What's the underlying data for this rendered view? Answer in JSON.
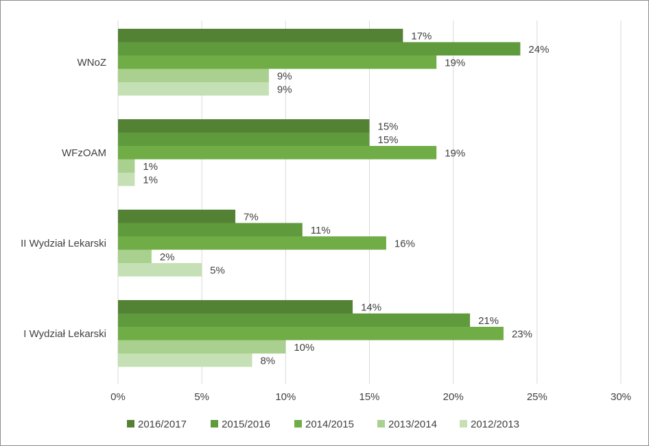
{
  "chart_data": {
    "type": "bar",
    "orientation": "horizontal",
    "title": "",
    "xlabel": "",
    "ylabel": "",
    "categories": [
      "WNoZ",
      "WFzOAM",
      "II Wydział Lekarski",
      "I Wydział Lekarski"
    ],
    "series": [
      {
        "name": "2016/2017",
        "color": "#548235",
        "values": [
          17,
          15,
          7,
          14
        ]
      },
      {
        "name": "2015/2016",
        "color": "#5f9a3c",
        "values": [
          24,
          15,
          11,
          21
        ]
      },
      {
        "name": "2014/2015",
        "color": "#70ad47",
        "values": [
          19,
          19,
          16,
          23
        ]
      },
      {
        "name": "2013/2014",
        "color": "#a9d08e",
        "values": [
          9,
          1,
          2,
          10
        ]
      },
      {
        "name": "2012/2013",
        "color": "#c5e0b4",
        "values": [
          9,
          1,
          5,
          8
        ]
      }
    ],
    "value_suffix": "%",
    "xlim": [
      0,
      30
    ],
    "x_ticks": [
      "0%",
      "5%",
      "10%",
      "15%",
      "20%",
      "25%",
      "30%"
    ],
    "grid": "vertical",
    "legend_position": "bottom"
  }
}
